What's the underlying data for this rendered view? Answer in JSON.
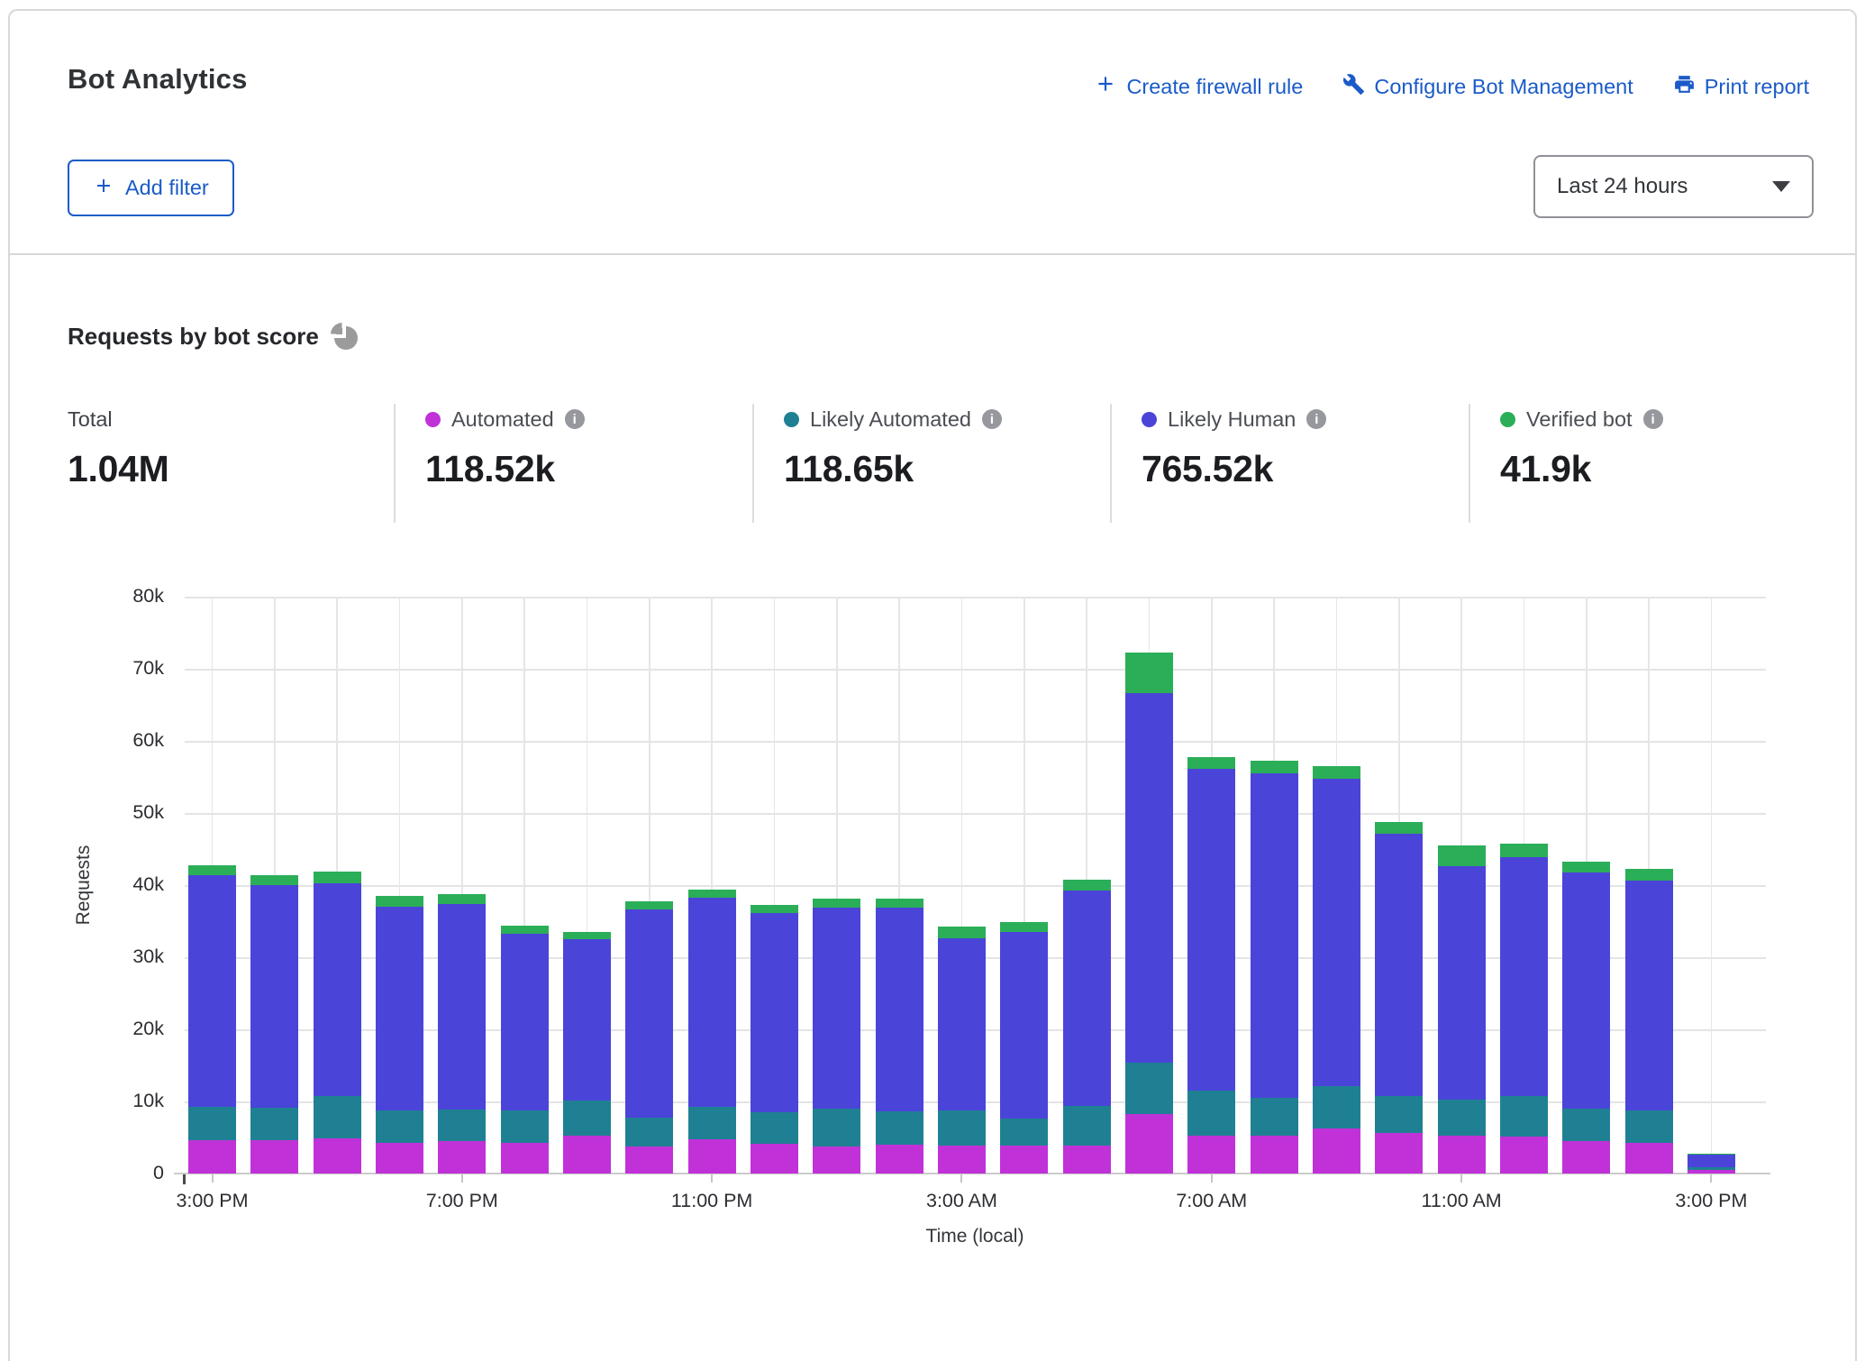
{
  "header": {
    "title": "Bot Analytics",
    "actions": [
      {
        "label": "Create firewall rule",
        "icon": "plus-icon"
      },
      {
        "label": "Configure Bot Management",
        "icon": "wrench-icon"
      },
      {
        "label": "Print report",
        "icon": "printer-icon"
      }
    ],
    "add_filter_label": "Add filter",
    "time_range_selected": "Last 24 hours"
  },
  "section": {
    "title": "Requests by bot score"
  },
  "stats": [
    {
      "label": "Total",
      "value": "1.04M",
      "color": null
    },
    {
      "label": "Automated",
      "value": "118.52k",
      "color": "#c032d8"
    },
    {
      "label": "Likely Automated",
      "value": "118.65k",
      "color": "#1f8093"
    },
    {
      "label": "Likely Human",
      "value": "765.52k",
      "color": "#4a44d9"
    },
    {
      "label": "Verified bot",
      "value": "41.9k",
      "color": "#2bae58"
    }
  ],
  "chart_data": {
    "type": "bar",
    "stacked": true,
    "title": "Requests by bot score",
    "xlabel": "Time (local)",
    "ylabel": "Requests",
    "grid": true,
    "ylim_k": [
      0,
      80
    ],
    "y_tick_step_k": 10,
    "y_tick_labels": [
      "0",
      "10k",
      "20k",
      "30k",
      "40k",
      "50k",
      "60k",
      "70k",
      "80k"
    ],
    "x": [
      "3:00 PM",
      "4:00 PM",
      "5:00 PM",
      "6:00 PM",
      "7:00 PM",
      "8:00 PM",
      "9:00 PM",
      "10:00 PM",
      "11:00 PM",
      "12:00 AM",
      "1:00 AM",
      "2:00 AM",
      "3:00 AM",
      "4:00 AM",
      "5:00 AM",
      "6:00 AM",
      "7:00 AM",
      "8:00 AM",
      "9:00 AM",
      "10:00 AM",
      "11:00 AM",
      "12:00 PM",
      "1:00 PM",
      "2:00 PM",
      "3:00 PM"
    ],
    "x_tick_indices": [
      0,
      4,
      8,
      12,
      16,
      20,
      24
    ],
    "x_tick_labels": [
      "3:00 PM",
      "7:00 PM",
      "11:00 PM",
      "3:00 AM",
      "7:00 AM",
      "11:00 AM",
      "3:00 PM"
    ],
    "units": "thousands of requests",
    "series": [
      {
        "name": "Automated",
        "color": "#c032d8",
        "values_k": [
          4.6,
          4.6,
          4.9,
          4.3,
          4.5,
          4.3,
          5.2,
          3.7,
          4.7,
          4.1,
          3.8,
          4.0,
          3.9,
          3.9,
          3.9,
          8.3,
          5.3,
          5.2,
          6.3,
          5.6,
          5.2,
          5.1,
          4.5,
          4.3,
          0.5
        ]
      },
      {
        "name": "Likely Automated",
        "color": "#1f8093",
        "values_k": [
          4.6,
          4.5,
          5.8,
          4.4,
          4.4,
          4.4,
          4.9,
          4.1,
          4.6,
          4.4,
          5.2,
          4.6,
          4.9,
          3.7,
          5.5,
          7.1,
          6.2,
          5.3,
          5.8,
          5.2,
          5.1,
          5.7,
          4.5,
          4.4,
          0.4
        ]
      },
      {
        "name": "Likely Human",
        "color": "#4a44d9",
        "values_k": [
          32.2,
          30.9,
          29.6,
          28.3,
          28.5,
          24.6,
          22.4,
          28.8,
          28.9,
          27.6,
          27.9,
          28.3,
          23.8,
          25.9,
          29.9,
          51.2,
          44.6,
          45.0,
          42.6,
          36.3,
          32.3,
          33.1,
          32.7,
          31.9,
          1.7
        ]
      },
      {
        "name": "Verified bot",
        "color": "#2bae58",
        "values_k": [
          1.4,
          1.4,
          1.6,
          1.5,
          1.4,
          1.1,
          1.0,
          1.1,
          1.2,
          1.2,
          1.2,
          1.2,
          1.6,
          1.4,
          1.4,
          5.7,
          1.7,
          1.8,
          1.8,
          1.7,
          2.9,
          1.8,
          1.6,
          1.7,
          0.1
        ]
      }
    ],
    "legend_position": "top-stats-row"
  }
}
